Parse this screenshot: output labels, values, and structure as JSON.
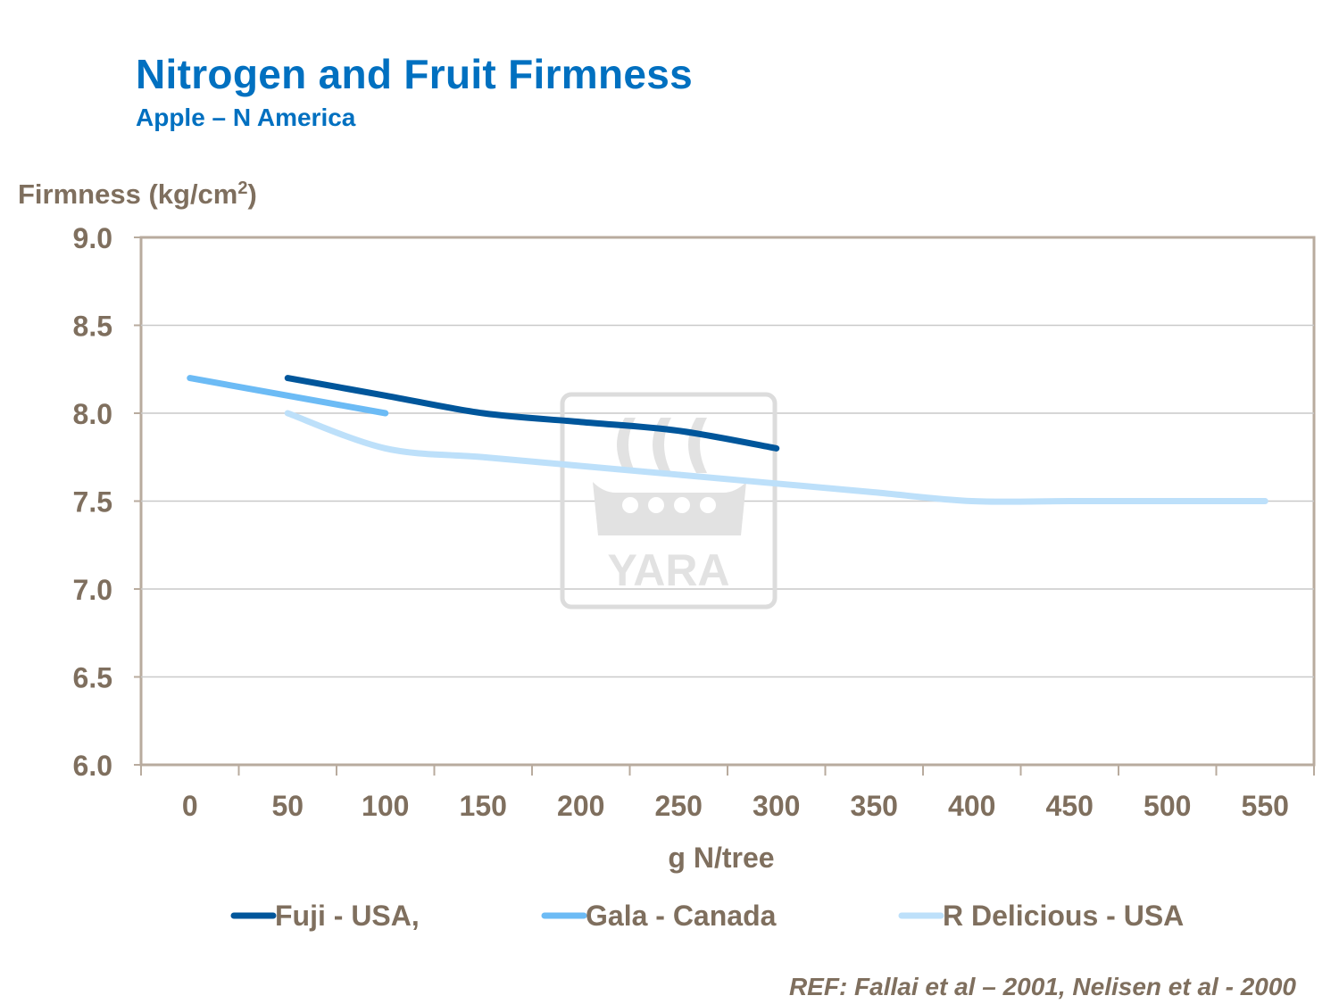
{
  "header": {
    "title": "Nitrogen and Fruit Firmness",
    "subtitle": "Apple – N America"
  },
  "reference": "REF: Fallai et al – 2001, Nelisen et al - 2000",
  "watermark": {
    "text": "YARA"
  },
  "colors": {
    "title": "#0070c0",
    "axis_text": "#7f6f5e",
    "frame": "#b8ab9e",
    "grid": "#c9c9c9",
    "watermark": "#d9d9d9"
  },
  "chart_data": {
    "type": "line",
    "ylabel": "Firmness (kg/cm",
    "ylabel_sup": "2",
    "ylabel_close": ")",
    "xlabel": "g N/tree",
    "x_categories": [
      "0",
      "50",
      "100",
      "150",
      "200",
      "250",
      "300",
      "350",
      "400",
      "450",
      "500",
      "550"
    ],
    "ylim": [
      6.0,
      9.0
    ],
    "yticks": [
      "9.0",
      "8.5",
      "8.0",
      "7.5",
      "7.0",
      "6.5",
      "6.0"
    ],
    "grid": true,
    "legend_position": "bottom",
    "series": [
      {
        "name": "Fuji - USA,",
        "color": "#00569b",
        "points": [
          [
            50,
            8.2
          ],
          [
            100,
            8.1
          ],
          [
            150,
            8.0
          ],
          [
            200,
            7.95
          ],
          [
            250,
            7.9
          ],
          [
            300,
            7.8
          ]
        ]
      },
      {
        "name": "Gala - Canada",
        "color": "#6cbbf5",
        "points": [
          [
            0,
            8.2
          ],
          [
            100,
            8.0
          ]
        ]
      },
      {
        "name": "R Delicious - USA",
        "color": "#bde0fa",
        "points": [
          [
            50,
            8.0
          ],
          [
            100,
            7.8
          ],
          [
            150,
            7.75
          ],
          [
            200,
            7.7
          ],
          [
            250,
            7.65
          ],
          [
            300,
            7.6
          ],
          [
            350,
            7.55
          ],
          [
            400,
            7.5
          ],
          [
            450,
            7.5
          ],
          [
            500,
            7.5
          ],
          [
            550,
            7.5
          ]
        ]
      }
    ]
  }
}
